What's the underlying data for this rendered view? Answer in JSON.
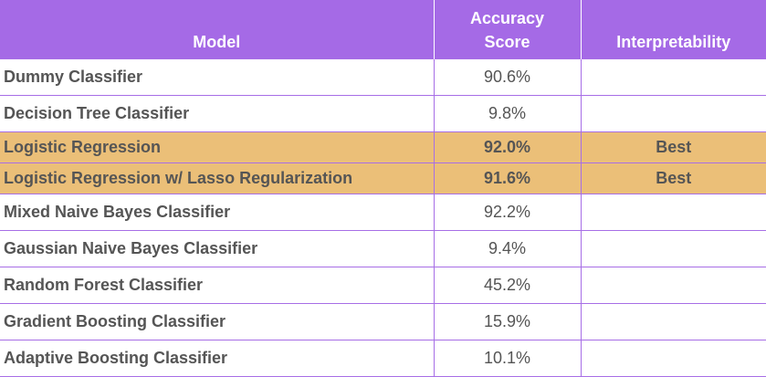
{
  "table": {
    "headers": [
      "Model",
      "Accuracy\nScore",
      "Interpretability"
    ],
    "rows": [
      {
        "model": "Dummy Classifier",
        "accuracy": "90.6%",
        "interpretability": "",
        "highlight": false
      },
      {
        "model": "Decision Tree Classifier",
        "accuracy": "9.8%",
        "interpretability": "",
        "highlight": false
      },
      {
        "model": "Logistic Regression",
        "accuracy": "92.0%",
        "interpretability": "Best",
        "highlight": true
      },
      {
        "model": "Logistic Regression w/ Lasso Regularization",
        "accuracy": "91.6%",
        "interpretability": "Best",
        "highlight": true
      },
      {
        "model": "Mixed Naive Bayes Classifier",
        "accuracy": "92.2%",
        "interpretability": "",
        "highlight": false
      },
      {
        "model": "Gaussian Naive Bayes Classifier",
        "accuracy": "9.4%",
        "interpretability": "",
        "highlight": false
      },
      {
        "model": "Random Forest Classifier",
        "accuracy": "45.2%",
        "interpretability": "",
        "highlight": false
      },
      {
        "model": "Gradient Boosting Classifier",
        "accuracy": "15.9%",
        "interpretability": "",
        "highlight": false
      },
      {
        "model": "Adaptive Boosting Classifier",
        "accuracy": "10.1%",
        "interpretability": "",
        "highlight": false
      }
    ],
    "colors": {
      "header_bg": "#a56ae6",
      "highlight_bg": "#ebbf78",
      "border": "#a76ee6",
      "text": "#555555"
    }
  }
}
